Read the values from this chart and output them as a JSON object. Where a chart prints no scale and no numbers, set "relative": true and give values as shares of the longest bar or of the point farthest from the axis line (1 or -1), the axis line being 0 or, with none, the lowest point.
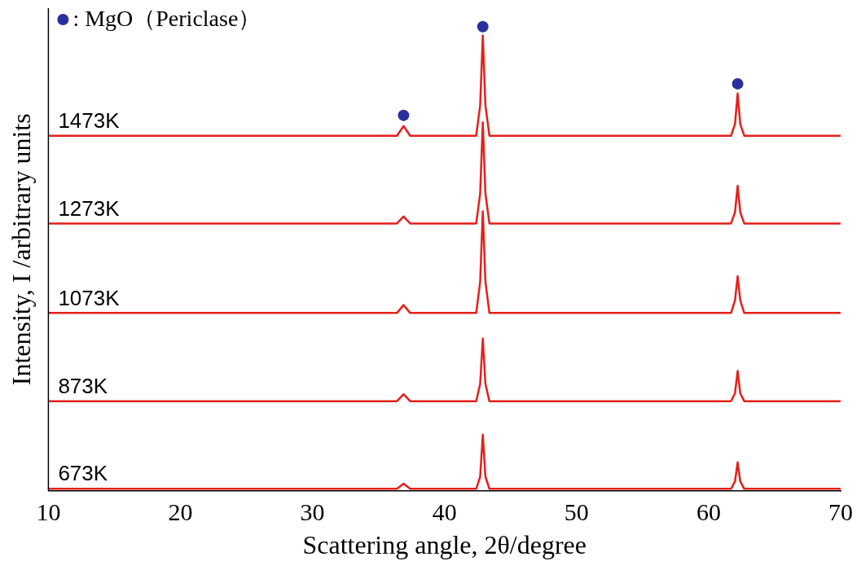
{
  "chart_data": {
    "type": "line",
    "relative": true,
    "xlabel": "Scattering angle, 2θ/degree",
    "ylabel": "Intensity, I /arbitrary units",
    "xlim": [
      10,
      70
    ],
    "xticks": [
      10,
      20,
      30,
      40,
      50,
      60,
      70
    ],
    "tick_labels": "x",
    "grid": false,
    "legend": "top left",
    "marker": "none",
    "x": [
      10,
      36.4,
      36.9,
      37.4,
      42.4,
      42.7,
      42.9,
      43.1,
      43.4,
      61.7,
      62.0,
      62.2,
      62.4,
      62.7,
      70
    ],
    "series": [
      {
        "name": "1473K",
        "color": "#e3201b",
        "values": [
          0.765,
          0.765,
          0.786,
          0.765,
          0.765,
          0.83,
          0.981,
          0.83,
          0.765,
          0.765,
          0.79,
          0.856,
          0.79,
          0.765,
          0.765
        ]
      },
      {
        "name": "1273K",
        "color": "#e3201b",
        "values": [
          0.576,
          0.576,
          0.591,
          0.576,
          0.576,
          0.64,
          0.794,
          0.64,
          0.576,
          0.576,
          0.6,
          0.657,
          0.6,
          0.576,
          0.576
        ]
      },
      {
        "name": "1073K",
        "color": "#e3201b",
        "values": [
          0.383,
          0.383,
          0.4,
          0.383,
          0.383,
          0.45,
          0.602,
          0.45,
          0.383,
          0.383,
          0.41,
          0.462,
          0.41,
          0.383,
          0.383
        ]
      },
      {
        "name": "873K",
        "color": "#e3201b",
        "values": [
          0.193,
          0.193,
          0.208,
          0.193,
          0.193,
          0.23,
          0.328,
          0.23,
          0.193,
          0.193,
          0.21,
          0.258,
          0.21,
          0.193,
          0.193
        ]
      },
      {
        "name": "673K",
        "color": "#e3201b",
        "values": [
          0.004,
          0.004,
          0.015,
          0.004,
          0.004,
          0.03,
          0.121,
          0.03,
          0.004,
          0.004,
          0.02,
          0.061,
          0.02,
          0.004,
          0.004
        ]
      },
      {
        "name": ": MgO（Periclase）",
        "type": "scatter",
        "marker": "circle",
        "color": "#2b2f9e",
        "x": [
          36.9,
          42.9,
          62.2
        ],
        "values": [
          0.809,
          1,
          0.877
        ]
      }
    ]
  }
}
